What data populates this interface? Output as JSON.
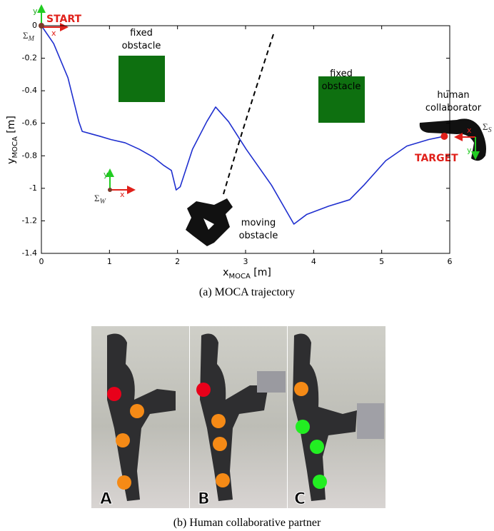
{
  "chart_data": {
    "type": "line",
    "x": [
      0,
      0.18,
      0.39,
      0.55,
      0.6,
      0.86,
      1.02,
      1.23,
      1.44,
      1.65,
      1.8,
      1.91,
      1.98,
      2.04,
      2.22,
      2.43,
      2.56,
      2.75,
      3.01,
      3.38,
      3.71,
      3.9,
      4.22,
      4.53,
      4.74,
      5.06,
      5.37,
      5.69,
      5.92
    ],
    "values": [
      0,
      -0.11,
      -0.32,
      -0.59,
      -0.65,
      -0.68,
      -0.7,
      -0.72,
      -0.76,
      -0.81,
      -0.86,
      -0.89,
      -1.01,
      -0.99,
      -0.76,
      -0.59,
      -0.5,
      -0.59,
      -0.76,
      -0.98,
      -1.22,
      -1.16,
      -1.11,
      -1.07,
      -0.98,
      -0.83,
      -0.74,
      -0.7,
      -0.68
    ],
    "color": "#1f2fcf",
    "xlim": [
      0,
      6
    ],
    "ylim": [
      -1.4,
      0
    ],
    "xticks": [
      0,
      1,
      2,
      3,
      4,
      5,
      6
    ],
    "yticks": [
      0,
      -0.2,
      -0.4,
      -0.6,
      -0.8,
      -1,
      -1.2,
      -1.4
    ],
    "xlabel": {
      "base": "x",
      "sub": "MOCA",
      "unit": " [m]"
    },
    "ylabel": {
      "base": "y",
      "sub": "MOCA",
      "unit": " [m]"
    },
    "annotations": {
      "start": "START",
      "target": "TARGET",
      "fixed_obstacle_1": [
        "fixed",
        "obstacle"
      ],
      "fixed_obstacle_2": [
        "fixed",
        "obstacle"
      ],
      "human": [
        "human",
        "collaborator"
      ],
      "moving": [
        "moving",
        "obstacle"
      ]
    },
    "frame_symbol": "Σ",
    "frames": [
      {
        "sub": "M",
        "x": "x",
        "y": "y"
      },
      {
        "sub": "W",
        "x": "x",
        "y": "y"
      },
      {
        "sub": "S",
        "x": "x",
        "y": "y"
      }
    ]
  },
  "caption_a": "(a) MOCA trajectory",
  "photos": {
    "panels": [
      "A",
      "B",
      "C"
    ],
    "caption": "(b) Human collaborative partner"
  }
}
